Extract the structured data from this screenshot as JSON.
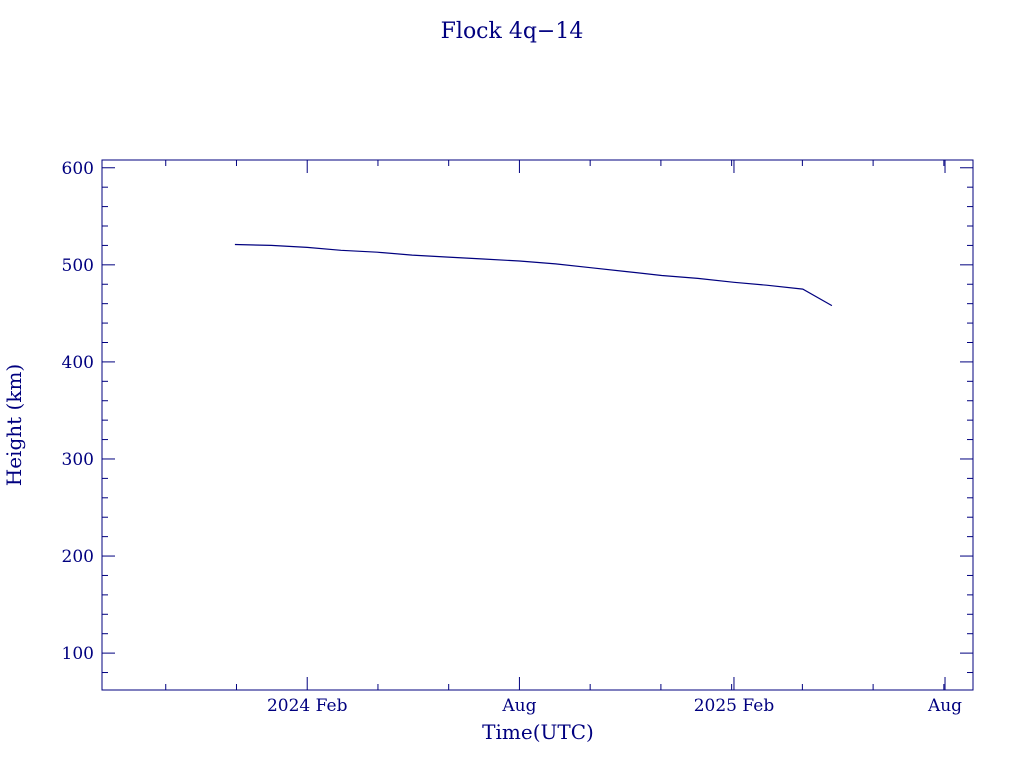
{
  "chart_data": {
    "type": "line",
    "title": "Flock 4q−14",
    "xlabel": "Time(UTC)",
    "ylabel": "Height (km)",
    "x_ticks": [
      {
        "date": "2024-02-01",
        "label": "2024 Feb"
      },
      {
        "date": "2024-08-01",
        "label": "Aug"
      },
      {
        "date": "2025-02-01",
        "label": "2025 Feb"
      },
      {
        "date": "2025-08-01",
        "label": "Aug"
      }
    ],
    "y_ticks": [
      100,
      200,
      300,
      400,
      500,
      600
    ],
    "xlim": [
      "2023-08-09",
      "2025-08-25"
    ],
    "ylim": [
      62,
      608
    ],
    "grid": false,
    "color": "#00007f",
    "series": [
      {
        "x": [
          "2023-12-01",
          "2024-01-01",
          "2024-02-01",
          "2024-03-01",
          "2024-04-01",
          "2024-05-01",
          "2024-06-01",
          "2024-07-01",
          "2024-08-01",
          "2024-09-01",
          "2024-10-01",
          "2024-11-01",
          "2024-12-01",
          "2025-01-01",
          "2025-02-01",
          "2025-03-01",
          "2025-04-01",
          "2025-04-26"
        ],
        "y": [
          521,
          520,
          518,
          515,
          513,
          510,
          508,
          506,
          504,
          501,
          497,
          493,
          489,
          486,
          482,
          479,
          475,
          458
        ]
      }
    ]
  }
}
